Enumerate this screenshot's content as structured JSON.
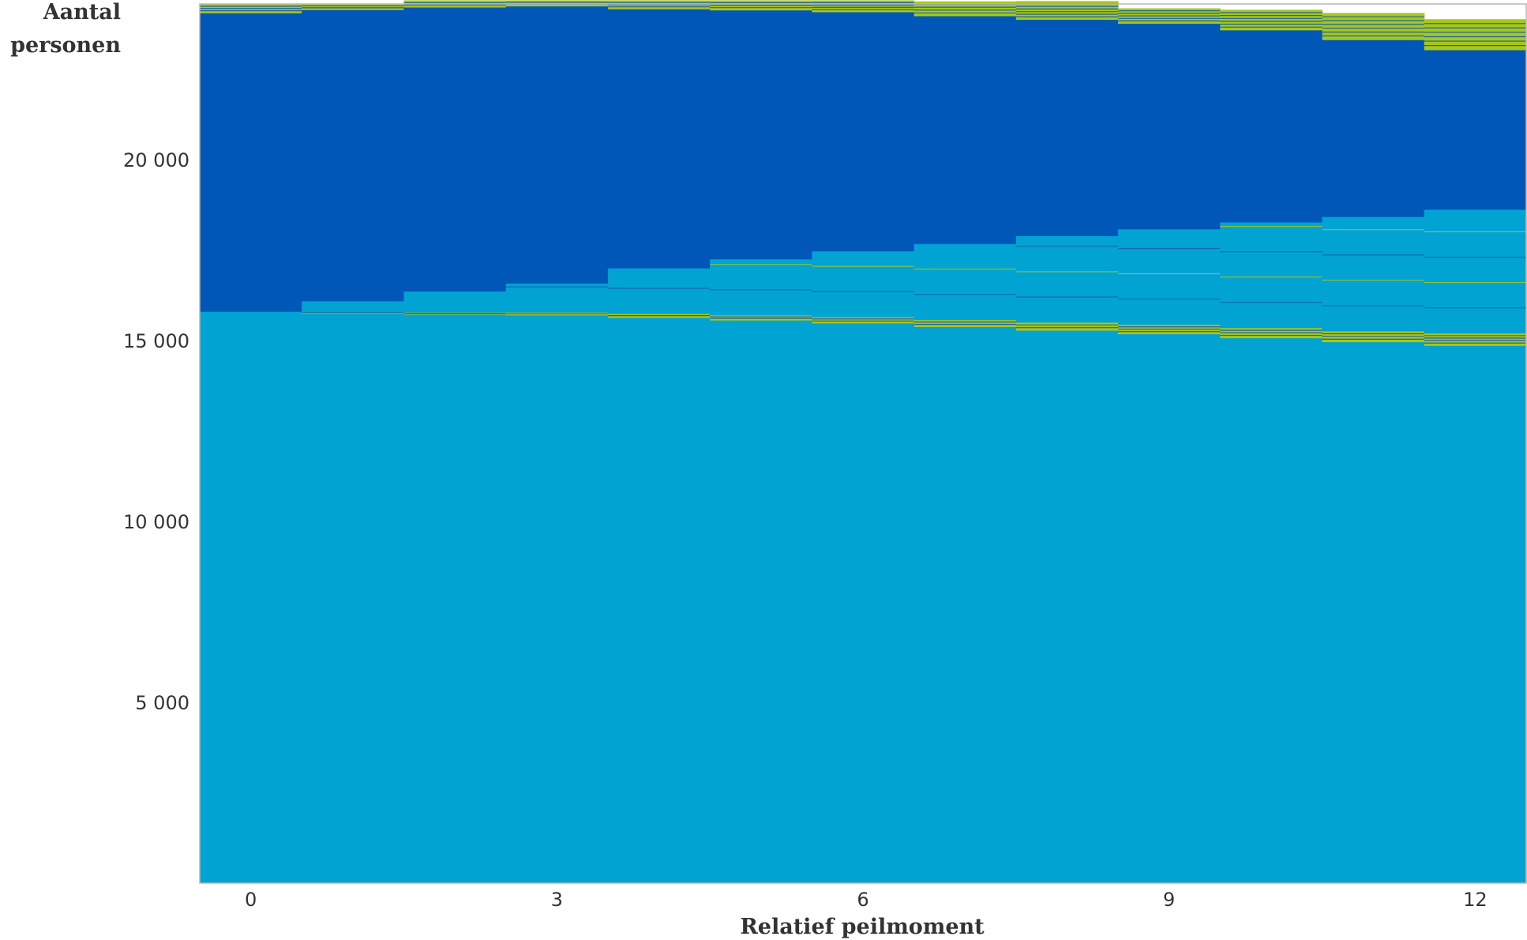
{
  "chart_data": {
    "type": "bar",
    "ylabel_line1": "Aantal",
    "ylabel_line2": "personen",
    "xlabel": "Relatief peilmoment",
    "ylim": [
      0,
      24300
    ],
    "xlim": [
      -0.5,
      12.5
    ],
    "x_ticks": [
      0,
      3,
      6,
      9,
      12
    ],
    "x_tick_labels": [
      "0",
      "3",
      "6",
      "9",
      "12"
    ],
    "y_ticks": [
      5000,
      10000,
      15000,
      20000
    ],
    "y_tick_labels": [
      "5 000",
      "10 000",
      "15 000",
      "20 000"
    ],
    "grid": false,
    "legend": "none",
    "colors": {
      "light_blue": "#00a3d2",
      "dark_blue": "#0057b8",
      "lime": "#a7c81a",
      "separator": "#1b5fa6"
    },
    "x": [
      0,
      1,
      2,
      3,
      4,
      5,
      6,
      7,
      8,
      9,
      10,
      11,
      12
    ],
    "series": [
      {
        "color": "light_blue",
        "values": [
          15800,
          15750,
          15720,
          15700,
          15630,
          15560,
          15480,
          15380,
          15280,
          15180,
          15070,
          14960,
          14860
        ]
      },
      {
        "color": "lime",
        "values": [
          0,
          40,
          60,
          80,
          110,
          140,
          170,
          190,
          220,
          260,
          280,
          300,
          340
        ]
      },
      {
        "color": "light_blue",
        "values": [
          0,
          300,
          580,
          800,
          1260,
          1550,
          1820,
          2110,
          2390,
          2640,
          2920,
          3160,
          3420
        ]
      },
      {
        "color": "dark_blue",
        "values": [
          8250,
          8050,
          7850,
          7660,
          7160,
          6880,
          6610,
          6290,
          5980,
          5680,
          5310,
          4890,
          4410
        ]
      },
      {
        "color": "lime",
        "values": [
          250,
          160,
          190,
          160,
          240,
          270,
          320,
          400,
          510,
          420,
          560,
          740,
          850
        ]
      }
    ],
    "bands": {
      "thin_lines_high_x": [
        8,
        9,
        10,
        11,
        12
      ]
    }
  }
}
